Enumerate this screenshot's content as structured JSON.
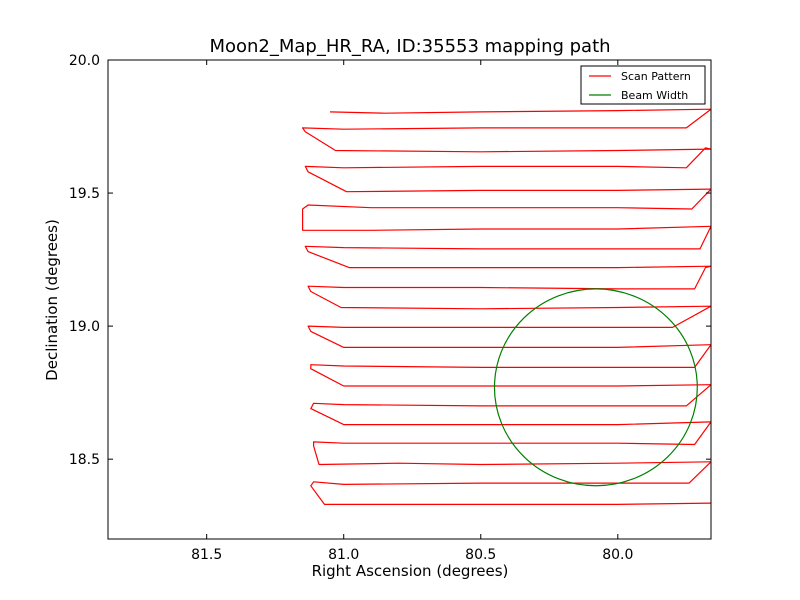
{
  "chart_data": {
    "type": "line",
    "title": "Moon2_Map_HR_RA, ID:35553 mapping path",
    "xlabel": "Right Ascension (degrees)",
    "ylabel": "Declination (degrees)",
    "x_inverted": true,
    "xlim": [
      81.86,
      79.66
    ],
    "ylim": [
      18.2,
      20.0
    ],
    "xticks": [
      81.5,
      81.0,
      80.5,
      80.0
    ],
    "xtick_labels": [
      "81.5",
      "81.0",
      "80.5",
      "80.0"
    ],
    "yticks": [
      18.5,
      19.0,
      19.5,
      20.0
    ],
    "ytick_labels": [
      "18.5",
      "19.0",
      "19.5",
      "20.0"
    ],
    "legend": {
      "placement": "top-right",
      "entries": [
        {
          "label": "Scan Pattern",
          "color": "#ff0000"
        },
        {
          "label": "Beam Width",
          "color": "#008000"
        }
      ]
    },
    "series": [
      {
        "name": "Scan Pattern",
        "color": "#ff0000",
        "points": [
          [
            81.05,
            19.805
          ],
          [
            80.85,
            19.8
          ],
          [
            80.5,
            19.805
          ],
          [
            80.0,
            19.81
          ],
          [
            79.66,
            19.815
          ],
          [
            79.75,
            19.745
          ],
          [
            80.0,
            19.745
          ],
          [
            80.5,
            19.745
          ],
          [
            81.0,
            19.74
          ],
          [
            81.15,
            19.745
          ],
          [
            81.14,
            19.73
          ],
          [
            81.03,
            19.66
          ],
          [
            80.5,
            19.655
          ],
          [
            80.0,
            19.66
          ],
          [
            79.66,
            19.665
          ],
          [
            79.68,
            19.67
          ],
          [
            79.75,
            19.595
          ],
          [
            80.0,
            19.6
          ],
          [
            80.5,
            19.6
          ],
          [
            81.0,
            19.595
          ],
          [
            81.14,
            19.6
          ],
          [
            81.13,
            19.58
          ],
          [
            80.99,
            19.505
          ],
          [
            80.5,
            19.51
          ],
          [
            80.0,
            19.51
          ],
          [
            79.66,
            19.515
          ],
          [
            79.73,
            19.44
          ],
          [
            80.0,
            19.445
          ],
          [
            80.5,
            19.445
          ],
          [
            80.9,
            19.445
          ],
          [
            81.13,
            19.455
          ],
          [
            81.15,
            19.44
          ],
          [
            81.15,
            19.36
          ],
          [
            80.9,
            19.36
          ],
          [
            80.5,
            19.365
          ],
          [
            80.0,
            19.365
          ],
          [
            79.66,
            19.375
          ],
          [
            79.7,
            19.29
          ],
          [
            80.0,
            19.29
          ],
          [
            80.5,
            19.29
          ],
          [
            81.0,
            19.295
          ],
          [
            81.14,
            19.3
          ],
          [
            81.13,
            19.28
          ],
          [
            80.98,
            19.22
          ],
          [
            80.5,
            19.22
          ],
          [
            80.0,
            19.22
          ],
          [
            79.66,
            19.225
          ],
          [
            79.68,
            19.22
          ],
          [
            79.72,
            19.14
          ],
          [
            80.0,
            19.14
          ],
          [
            80.5,
            19.145
          ],
          [
            81.0,
            19.145
          ],
          [
            81.13,
            19.15
          ],
          [
            81.12,
            19.13
          ],
          [
            81.01,
            19.07
          ],
          [
            80.5,
            19.065
          ],
          [
            80.0,
            19.07
          ],
          [
            79.66,
            19.075
          ],
          [
            79.8,
            18.995
          ],
          [
            80.0,
            18.995
          ],
          [
            80.5,
            18.995
          ],
          [
            81.0,
            18.995
          ],
          [
            81.13,
            19.0
          ],
          [
            81.12,
            18.98
          ],
          [
            81.0,
            18.92
          ],
          [
            80.5,
            18.92
          ],
          [
            80.0,
            18.92
          ],
          [
            79.66,
            18.93
          ],
          [
            79.72,
            18.845
          ],
          [
            80.0,
            18.845
          ],
          [
            80.5,
            18.845
          ],
          [
            81.0,
            18.85
          ],
          [
            81.12,
            18.855
          ],
          [
            81.12,
            18.84
          ],
          [
            81.0,
            18.775
          ],
          [
            80.5,
            18.775
          ],
          [
            80.0,
            18.775
          ],
          [
            79.66,
            18.78
          ],
          [
            79.75,
            18.7
          ],
          [
            80.0,
            18.7
          ],
          [
            80.5,
            18.7
          ],
          [
            81.0,
            18.705
          ],
          [
            81.11,
            18.71
          ],
          [
            81.12,
            18.69
          ],
          [
            81.0,
            18.63
          ],
          [
            80.5,
            18.63
          ],
          [
            80.0,
            18.63
          ],
          [
            79.66,
            18.64
          ],
          [
            79.72,
            18.555
          ],
          [
            80.0,
            18.56
          ],
          [
            80.5,
            18.56
          ],
          [
            81.0,
            18.56
          ],
          [
            81.11,
            18.565
          ],
          [
            81.11,
            18.55
          ],
          [
            81.09,
            18.48
          ],
          [
            80.8,
            18.485
          ],
          [
            80.5,
            18.48
          ],
          [
            80.0,
            18.485
          ],
          [
            79.66,
            18.49
          ],
          [
            79.74,
            18.41
          ],
          [
            80.0,
            18.41
          ],
          [
            80.5,
            18.41
          ],
          [
            81.0,
            18.405
          ],
          [
            81.11,
            18.415
          ],
          [
            81.12,
            18.4
          ],
          [
            81.07,
            18.33
          ],
          [
            80.5,
            18.33
          ],
          [
            80.0,
            18.33
          ],
          [
            79.66,
            18.335
          ]
        ]
      },
      {
        "name": "Beam Width",
        "color": "#008000",
        "circle": {
          "center_ra": 80.08,
          "center_dec": 18.77,
          "radius_deg": 0.37
        }
      }
    ]
  }
}
